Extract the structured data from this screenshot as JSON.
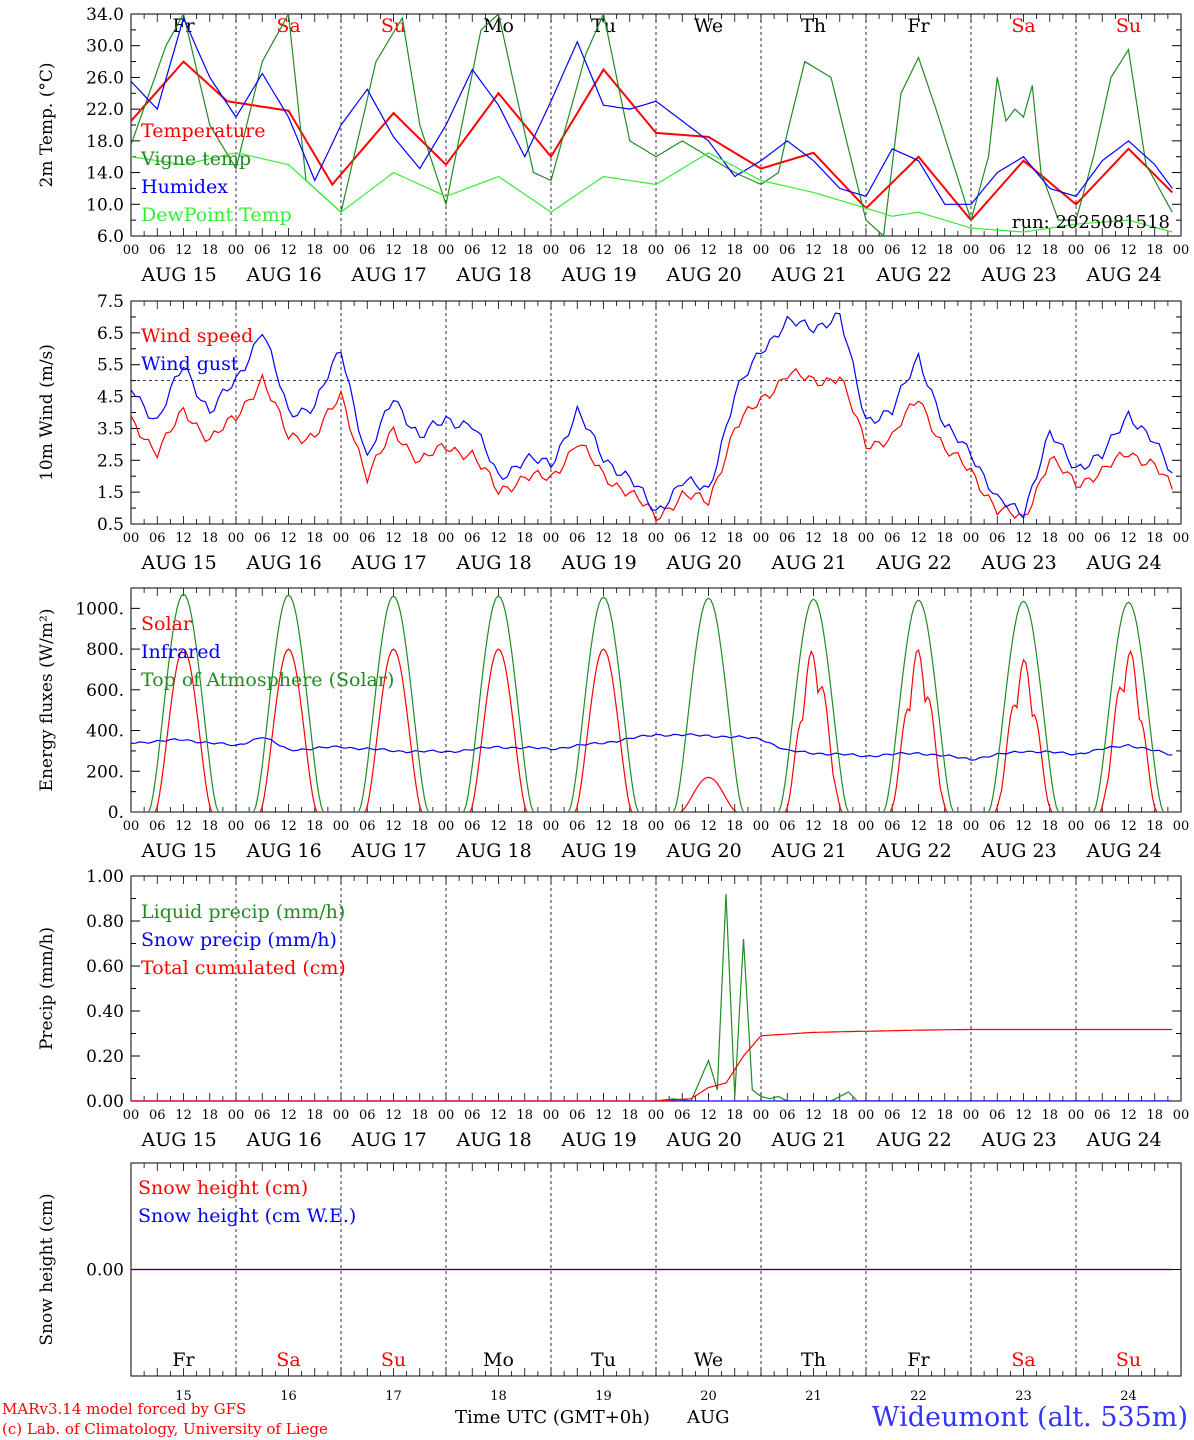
{
  "days": [
    "Fr",
    "Sa",
    "Su",
    "Mo",
    "Tu",
    "We",
    "Th",
    "Fr",
    "Sa",
    "Su"
  ],
  "day_colors": [
    "#000000",
    "#ff0000",
    "#ff0000",
    "#000000",
    "#000000",
    "#000000",
    "#000000",
    "#000000",
    "#ff0000",
    "#ff0000"
  ],
  "dates": [
    "AUG 15",
    "AUG 16",
    "AUG 17",
    "AUG 18",
    "AUG 19",
    "AUG 20",
    "AUG 21",
    "AUG 22",
    "AUG 23",
    "AUG 24"
  ],
  "date_numbers": [
    "15",
    "16",
    "17",
    "18",
    "19",
    "20",
    "21",
    "22",
    "23",
    "24"
  ],
  "hour_ticks": [
    "00",
    "06",
    "12",
    "18"
  ],
  "run_label": "run: 2025081518",
  "footer": {
    "credit1": "MARv3.14 model forced by GFS",
    "credit2": "(c) Lab. of Climatology, University of Liege",
    "xaxis": "Time UTC (GMT+0h)",
    "month": "AUG",
    "station": "Wideumont (alt. 535m)"
  },
  "colors": {
    "red": "#ff0000",
    "green": "#228b22",
    "blue": "#0000ff",
    "lightgreen": "#33ee33",
    "title_blue": "#3333ff"
  },
  "chart_data": [
    {
      "type": "line",
      "ylabel": "2m Temp. (°C)",
      "ylim": [
        6,
        34
      ],
      "yticks": [
        "6.0",
        "10.0",
        "14.0",
        "18.0",
        "22.0",
        "26.0",
        "30.0",
        "34.0"
      ],
      "grid": "vertical dashed at day boundaries",
      "legend": "top-left",
      "series": [
        {
          "name": "Temperature",
          "color": "#ff0000",
          "x": [
            0,
            12,
            22,
            36,
            46,
            60,
            72,
            84,
            96,
            108,
            120,
            132,
            144,
            156,
            168,
            180,
            192,
            204,
            216,
            228,
            238
          ],
          "values": [
            20.5,
            28,
            23,
            21.8,
            12.5,
            21.5,
            15,
            24,
            16,
            27,
            19,
            18.5,
            14.5,
            16.5,
            9.5,
            16,
            8,
            15.5,
            10,
            17,
            11.5
          ]
        },
        {
          "name": "Vigne temp",
          "color": "#228b22",
          "x": [
            0,
            8,
            12,
            18,
            24,
            30,
            36,
            40,
            48,
            56,
            62,
            66,
            72,
            80,
            84,
            92,
            96,
            104,
            108,
            114,
            120,
            126,
            132,
            138,
            144,
            148,
            150,
            154,
            160,
            168,
            172,
            176,
            180,
            184,
            192,
            196,
            198,
            200,
            202,
            204,
            206,
            208,
            212,
            216,
            220,
            224,
            228,
            232,
            238
          ],
          "values": [
            17.5,
            30,
            34,
            20,
            14.5,
            28,
            34,
            13,
            9,
            28,
            33.5,
            20,
            10,
            32,
            34,
            14,
            13,
            29,
            34,
            18,
            16,
            18,
            16,
            14,
            12.5,
            14,
            19,
            28,
            26,
            8,
            6,
            24,
            28.5,
            22,
            8,
            16,
            26,
            20.5,
            22,
            21,
            25,
            14,
            8,
            8,
            16,
            26,
            29.5,
            15,
            9
          ]
        },
        {
          "name": "Humidex",
          "color": "#0000ff",
          "x": [
            0,
            6,
            12,
            18,
            24,
            30,
            36,
            42,
            48,
            54,
            60,
            66,
            72,
            78,
            84,
            90,
            96,
            102,
            108,
            114,
            120,
            126,
            132,
            138,
            144,
            150,
            156,
            162,
            168,
            174,
            180,
            186,
            192,
            198,
            204,
            210,
            216,
            222,
            228,
            234,
            238
          ],
          "values": [
            25.5,
            22,
            33.5,
            26,
            21,
            26.5,
            21,
            13,
            20,
            24.5,
            18.5,
            14.5,
            20,
            27,
            22.5,
            16,
            23,
            30.5,
            22.5,
            22,
            23,
            20.5,
            18,
            13.5,
            15.5,
            18,
            15.5,
            12,
            11,
            17,
            15.5,
            10,
            10,
            14,
            16,
            12,
            11,
            15.5,
            18,
            15,
            12
          ]
        },
        {
          "name": "DewPoint Temp",
          "color": "#33ee33",
          "x": [
            0,
            12,
            24,
            36,
            48,
            60,
            72,
            84,
            96,
            108,
            120,
            132,
            144,
            156,
            168,
            174,
            180,
            192,
            204,
            216,
            228,
            238
          ],
          "values": [
            16,
            15,
            16.5,
            15,
            9,
            14,
            11,
            13.5,
            9,
            13.5,
            12.5,
            16.5,
            13,
            11.5,
            9.5,
            8.5,
            9,
            7,
            6.5,
            7.5,
            8,
            6.5
          ]
        }
      ]
    },
    {
      "type": "line",
      "ylabel": "10m Wind (m/s)",
      "ylim": [
        0.5,
        7.5
      ],
      "yticks": [
        "0.5",
        "1.5",
        "2.5",
        "3.5",
        "4.5",
        "5.5",
        "6.5",
        "7.5"
      ],
      "reference_line": 5.0,
      "legend": "top-left",
      "series": [
        {
          "name": "Wind speed",
          "color": "#ff0000",
          "x": [
            0,
            6,
            12,
            18,
            24,
            30,
            36,
            42,
            48,
            54,
            60,
            66,
            72,
            78,
            84,
            90,
            96,
            102,
            108,
            114,
            120,
            126,
            132,
            138,
            144,
            150,
            156,
            162,
            168,
            174,
            180,
            186,
            192,
            198,
            204,
            210,
            216,
            222,
            228,
            234,
            238
          ],
          "values": [
            3.7,
            2.8,
            4,
            3.2,
            3.8,
            5.1,
            3.2,
            3.3,
            4.5,
            2,
            3.4,
            2.5,
            2.9,
            2.7,
            1.5,
            2,
            1.9,
            3.1,
            2,
            1.5,
            0.7,
            1.4,
            1.2,
            3.5,
            4.4,
            5.2,
            5,
            5.1,
            3,
            3.2,
            4.5,
            2.8,
            2.2,
            0.9,
            0.7,
            2.5,
            1.8,
            2.1,
            2.8,
            2.3,
            1.6
          ]
        },
        {
          "name": "Wind gust",
          "color": "#0000ff",
          "x": [
            0,
            6,
            12,
            18,
            24,
            30,
            36,
            42,
            48,
            54,
            60,
            66,
            72,
            78,
            84,
            90,
            96,
            102,
            108,
            114,
            120,
            126,
            132,
            138,
            144,
            150,
            156,
            162,
            168,
            174,
            180,
            186,
            192,
            198,
            204,
            210,
            216,
            222,
            228,
            234,
            238
          ],
          "values": [
            4.8,
            3.7,
            5.5,
            4,
            5,
            6.6,
            4,
            4.2,
            6,
            2.5,
            4.5,
            3.2,
            3.8,
            3.6,
            2,
            2.5,
            2.4,
            4,
            2.6,
            1.9,
            0.9,
            1.8,
            1.6,
            4.5,
            6,
            6.8,
            6.7,
            7,
            3.8,
            4,
            5.8,
            3.5,
            2.8,
            1.2,
            0.9,
            3.3,
            2.3,
            2.6,
            4,
            3,
            2.1
          ]
        }
      ]
    },
    {
      "type": "line",
      "ylabel": "Energy fluxes (W/m²)",
      "ylim": [
        0,
        1100
      ],
      "yticks": [
        "0.",
        "200.",
        "400.",
        "600.",
        "800.",
        "1000."
      ],
      "legend": "top-left",
      "series": [
        {
          "name": "Solar",
          "color": "#ff0000",
          "daily_peak": [
            800,
            800,
            800,
            800,
            800,
            170,
            800,
            800,
            750,
            800
          ]
        },
        {
          "name": "Infrared",
          "color": "#0000ff",
          "x": [
            0,
            12,
            24,
            30,
            36,
            48,
            60,
            72,
            84,
            96,
            108,
            120,
            132,
            144,
            150,
            156,
            168,
            180,
            192,
            204,
            216,
            228,
            238
          ],
          "values": [
            340,
            355,
            325,
            370,
            305,
            320,
            300,
            295,
            320,
            310,
            340,
            380,
            375,
            360,
            300,
            290,
            275,
            290,
            260,
            300,
            285,
            330,
            280
          ]
        },
        {
          "name": "Top of Atmosphere (Solar)",
          "color": "#228b22",
          "daily_peak": [
            1070,
            1065,
            1060,
            1060,
            1055,
            1050,
            1045,
            1040,
            1035,
            1030
          ]
        }
      ]
    },
    {
      "type": "line",
      "ylabel": "Precip (mm/h)",
      "ylim": [
        0,
        1.0
      ],
      "yticks": [
        "0.00",
        "0.20",
        "0.40",
        "0.60",
        "0.80",
        "1.00"
      ],
      "legend": "top-left",
      "series": [
        {
          "name": "Liquid precip (mm/h)",
          "color": "#228b22",
          "x": [
            0,
            120,
            124,
            128,
            132,
            134,
            136,
            138,
            140,
            142,
            144,
            146,
            148,
            150,
            160,
            164,
            166,
            238
          ],
          "values": [
            0,
            0,
            0.01,
            0,
            0.18,
            0.05,
            0.92,
            0.02,
            0.72,
            0.05,
            0.02,
            0.01,
            0.02,
            0.0,
            0.0,
            0.04,
            0,
            0
          ]
        },
        {
          "name": "Snow precip (mm/h)",
          "color": "#0000ff",
          "x": [
            0,
            238
          ],
          "values": [
            0,
            0
          ]
        },
        {
          "name": "Total cumulated (cm)",
          "color": "#ff0000",
          "x": [
            0,
            120,
            128,
            132,
            136,
            140,
            144,
            156,
            168,
            180,
            192,
            238
          ],
          "values": [
            0,
            0,
            0.01,
            0.06,
            0.08,
            0.2,
            0.29,
            0.305,
            0.31,
            0.315,
            0.318,
            0.318
          ]
        }
      ]
    },
    {
      "type": "line",
      "ylabel": "Snow height (cm)",
      "yticks": [
        "0.00"
      ],
      "legend": "top-left",
      "series": [
        {
          "name": "Snow height (cm)",
          "color": "#ff0000",
          "x": [
            0,
            238
          ],
          "values": [
            0,
            0
          ]
        },
        {
          "name": "Snow height (cm W.E.)",
          "color": "#0000ff",
          "x": [
            0,
            238
          ],
          "values": [
            0,
            0
          ]
        }
      ]
    }
  ]
}
